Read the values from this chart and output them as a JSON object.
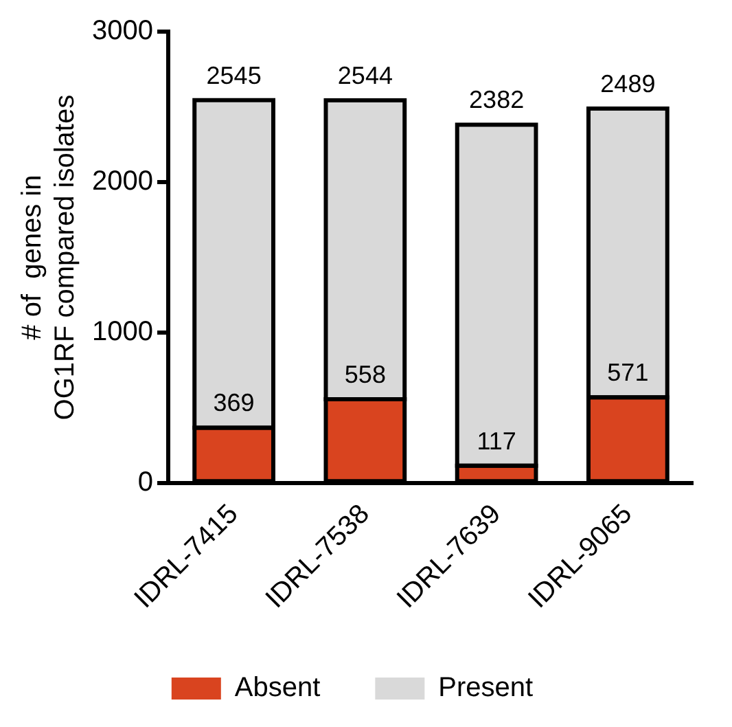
{
  "chart_data": {
    "type": "bar",
    "stacked": true,
    "ylabel": "# of  genes in\nOG1RF compared isolates",
    "categories": [
      "IDRL-7415",
      "IDRL-7538",
      "IDRL-7639",
      "IDRL-9065"
    ],
    "series": [
      {
        "name": "Absent",
        "color": "#d9441f",
        "values": [
          369,
          558,
          117,
          571
        ],
        "value_labels": [
          "369",
          "558",
          "117",
          "571"
        ]
      },
      {
        "name": "Present",
        "color": "#d9d9d9",
        "values": [
          2176,
          1986,
          2265,
          1918
        ]
      }
    ],
    "totals": [
      "2545",
      "2544",
      "2382",
      "2489"
    ],
    "ylim": [
      0,
      3000
    ],
    "yticks": [
      0,
      1000,
      2000,
      3000
    ],
    "grid": false,
    "legend": "bottom"
  }
}
